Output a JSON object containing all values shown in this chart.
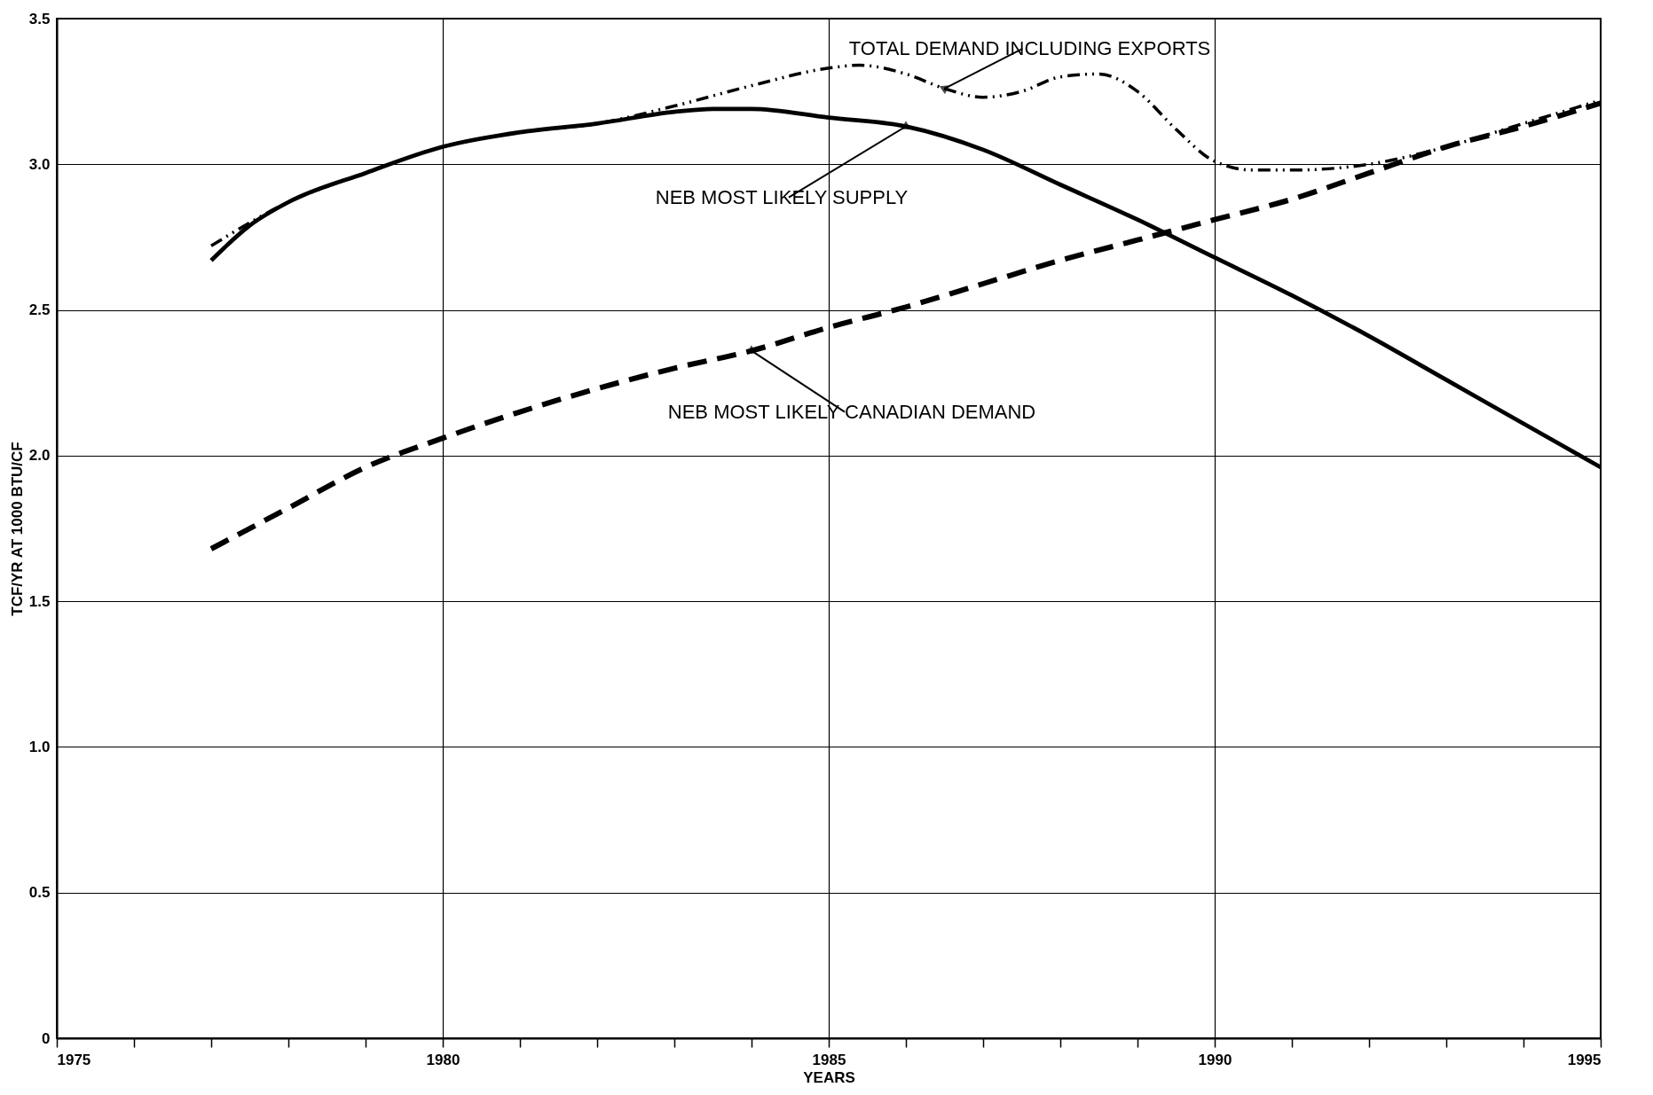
{
  "chart_data": {
    "type": "line",
    "xlabel": "YEARS",
    "ylabel": "TCF/YR AT 1000 BTU/CF",
    "xlim": [
      1975,
      1995
    ],
    "xticks": [
      1975,
      {
        "value": 1976,
        "label": null
      },
      {
        "value": 1977,
        "label": null
      },
      {
        "value": 1978,
        "label": null
      },
      {
        "value": 1979,
        "label": null
      },
      1980,
      {
        "value": 1981,
        "label": null
      },
      {
        "value": 1982,
        "label": null
      },
      {
        "value": 1983,
        "label": null
      },
      {
        "value": 1984,
        "label": null
      },
      1985,
      {
        "value": 1986,
        "label": null
      },
      {
        "value": 1987,
        "label": null
      },
      {
        "value": 1988,
        "label": null
      },
      {
        "value": 1989,
        "label": null
      },
      1990,
      {
        "value": 1991,
        "label": null
      },
      {
        "value": 1992,
        "label": null
      },
      {
        "value": 1993,
        "label": null
      },
      {
        "value": 1994,
        "label": null
      },
      1995
    ],
    "ylim": [
      0,
      3.5
    ],
    "yticks": [
      0,
      0.5,
      {
        "value": 1,
        "label": "1.0"
      },
      1.5,
      {
        "value": 2,
        "label": "2.0"
      },
      2.5,
      {
        "value": 3,
        "label": "3.0"
      },
      3.5
    ],
    "grid": true,
    "marker": "none",
    "series": [
      {
        "name": "TOTAL DEMAND INCLUDING EXPORTS",
        "color": "#000000",
        "line_style": "dashdotdot",
        "x": [
          1977,
          1978,
          1979,
          1980,
          1981,
          1982,
          1983,
          1984,
          1985,
          1985.4,
          1986,
          1986.5,
          1987,
          1987.5,
          1988,
          1988.5,
          1989,
          1989.5,
          1990,
          1990.5,
          1991,
          1992,
          1993,
          1994,
          1995
        ],
        "values": [
          2.72,
          2.87,
          2.97,
          3.06,
          3.11,
          3.14,
          3.2,
          3.27,
          3.33,
          3.34,
          3.31,
          3.26,
          3.23,
          3.25,
          3.3,
          3.31,
          3.25,
          3.12,
          3.01,
          2.98,
          2.98,
          3.0,
          3.06,
          3.14,
          3.22
        ]
      },
      {
        "name": "NEB MOST LIKELY SUPPLY",
        "color": "#000000",
        "line_style": "solid",
        "x": [
          1977,
          1977.5,
          1978,
          1979,
          1980,
          1981,
          1982,
          1983,
          1983.5,
          1984,
          1985,
          1986,
          1987,
          1988,
          1989,
          1990,
          1991,
          1992,
          1993,
          1994,
          1995
        ],
        "values": [
          2.67,
          2.79,
          2.87,
          2.97,
          3.06,
          3.11,
          3.14,
          3.18,
          3.19,
          3.19,
          3.16,
          3.13,
          3.05,
          2.93,
          2.81,
          2.68,
          2.55,
          2.41,
          2.26,
          2.11,
          1.96
        ]
      },
      {
        "name": "NEB MOST LIKELY CANADIAN DEMAND",
        "color": "#000000",
        "line_style": "dashed",
        "x": [
          1977,
          1978,
          1979,
          1980,
          1981,
          1982,
          1983,
          1984,
          1985,
          1986,
          1987,
          1988,
          1989,
          1990,
          1991,
          1992,
          1993,
          1994,
          1995
        ],
        "values": [
          1.68,
          1.82,
          1.96,
          2.06,
          2.15,
          2.23,
          2.3,
          2.36,
          2.44,
          2.51,
          2.59,
          2.67,
          2.74,
          2.81,
          2.88,
          2.97,
          3.06,
          3.13,
          3.21
        ]
      }
    ]
  }
}
